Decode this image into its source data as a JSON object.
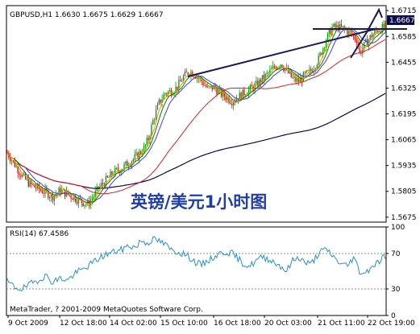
{
  "chart_data": [
    {
      "type": "candlestick",
      "title": "GBPUSD,H1  1.6630 1.6675 1.6629 1.6667",
      "annotation": "英镑/美元1小时图",
      "ylim": [
        1.565,
        1.674
      ],
      "y_ticks": [
        "1.6715",
        "1.6585",
        "1.6455",
        "1.6325",
        "1.6195",
        "1.6065",
        "1.5935",
        "1.5805",
        "1.5675"
      ],
      "last_price": "1.6667",
      "x_ticks": [
        "9 Oct 2009",
        "12 Oct 18:00",
        "14 Oct 02:00",
        "15 Oct 10:00",
        "16 Oct 18:00",
        "20 Oct 03:00",
        "21 Oct 11:00",
        "22 Oct 19:00"
      ],
      "close_path": [
        [
          0,
          1.6
        ],
        [
          5,
          1.594
        ],
        [
          10,
          1.588
        ],
        [
          15,
          1.584
        ],
        [
          20,
          1.582
        ],
        [
          25,
          1.58
        ],
        [
          30,
          1.578
        ],
        [
          35,
          1.581
        ],
        [
          40,
          1.579
        ],
        [
          45,
          1.577
        ],
        [
          50,
          1.575
        ],
        [
          53,
          1.574
        ],
        [
          56,
          1.577
        ],
        [
          60,
          1.582
        ],
        [
          65,
          1.586
        ],
        [
          70,
          1.59
        ],
        [
          75,
          1.592
        ],
        [
          80,
          1.595
        ],
        [
          85,
          1.598
        ],
        [
          90,
          1.602
        ],
        [
          93,
          1.607
        ],
        [
          96,
          1.616
        ],
        [
          100,
          1.625
        ],
        [
          104,
          1.63
        ],
        [
          108,
          1.631
        ],
        [
          112,
          1.633
        ],
        [
          116,
          1.638
        ],
        [
          120,
          1.641
        ],
        [
          124,
          1.639
        ],
        [
          128,
          1.636
        ],
        [
          132,
          1.632
        ],
        [
          136,
          1.633
        ],
        [
          140,
          1.63
        ],
        [
          144,
          1.628
        ],
        [
          148,
          1.626
        ],
        [
          152,
          1.628
        ],
        [
          156,
          1.63
        ],
        [
          160,
          1.632
        ],
        [
          164,
          1.634
        ],
        [
          168,
          1.637
        ],
        [
          172,
          1.64
        ],
        [
          176,
          1.643
        ],
        [
          180,
          1.645
        ],
        [
          184,
          1.641
        ],
        [
          188,
          1.637
        ],
        [
          192,
          1.636
        ],
        [
          196,
          1.639
        ],
        [
          200,
          1.641
        ],
        [
          205,
          1.647
        ],
        [
          210,
          1.657
        ],
        [
          214,
          1.663
        ],
        [
          218,
          1.663
        ],
        [
          222,
          1.662
        ],
        [
          226,
          1.66
        ],
        [
          230,
          1.657
        ],
        [
          232,
          1.65
        ],
        [
          236,
          1.655
        ],
        [
          240,
          1.659
        ],
        [
          244,
          1.662
        ],
        [
          248,
          1.663
        ]
      ],
      "series": [
        {
          "color": "#0a0a4a"
        },
        {
          "color": "#3c3cff"
        },
        {
          "color": "#e02020"
        },
        {
          "color": "#008000"
        },
        {
          "color": "#ff8a00"
        }
      ]
    },
    {
      "type": "line",
      "title": "RSI(14) 67.4586",
      "ylim": [
        0,
        100
      ],
      "y_ticks": [
        "100",
        "70",
        "30",
        "0"
      ],
      "levels": [
        70,
        30
      ],
      "color": "#2a8fcf",
      "values_path": [
        [
          0,
          38
        ],
        [
          5,
          32
        ],
        [
          10,
          30
        ],
        [
          15,
          35
        ],
        [
          20,
          40
        ],
        [
          25,
          45
        ],
        [
          30,
          38
        ],
        [
          35,
          42
        ],
        [
          40,
          40
        ],
        [
          45,
          48
        ],
        [
          50,
          52
        ],
        [
          55,
          58
        ],
        [
          60,
          64
        ],
        [
          65,
          69
        ],
        [
          70,
          72
        ],
        [
          75,
          74
        ],
        [
          80,
          79
        ],
        [
          85,
          77
        ],
        [
          88,
          85
        ],
        [
          92,
          82
        ],
        [
          96,
          86
        ],
        [
          100,
          84
        ],
        [
          104,
          80
        ],
        [
          108,
          74
        ],
        [
          112,
          72
        ],
        [
          116,
          70
        ],
        [
          120,
          66
        ],
        [
          124,
          60
        ],
        [
          128,
          57
        ],
        [
          132,
          62
        ],
        [
          136,
          66
        ],
        [
          140,
          70
        ],
        [
          144,
          72
        ],
        [
          148,
          70
        ],
        [
          152,
          64
        ],
        [
          156,
          58
        ],
        [
          160,
          56
        ],
        [
          164,
          62
        ],
        [
          168,
          66
        ],
        [
          172,
          64
        ],
        [
          176,
          60
        ],
        [
          180,
          56
        ],
        [
          184,
          50
        ],
        [
          188,
          62
        ],
        [
          192,
          66
        ],
        [
          196,
          60
        ],
        [
          200,
          58
        ],
        [
          204,
          68
        ],
        [
          208,
          74
        ],
        [
          212,
          72
        ],
        [
          216,
          64
        ],
        [
          220,
          58
        ],
        [
          224,
          56
        ],
        [
          228,
          66
        ],
        [
          232,
          50
        ],
        [
          236,
          48
        ],
        [
          240,
          56
        ],
        [
          244,
          60
        ],
        [
          248,
          67
        ]
      ]
    }
  ],
  "footer": "MetaTrader, ? 2001-2009 MetaQuotes Software Corp."
}
